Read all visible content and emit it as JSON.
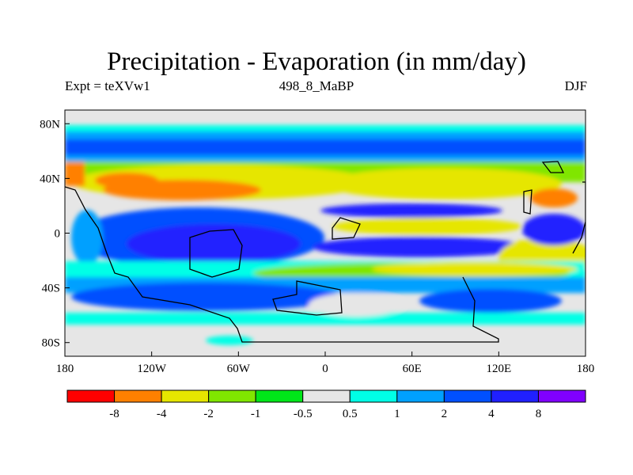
{
  "title": "Precipitation - Evaporation (in mm/day)",
  "subtitle_left": "Expt = teXVw1",
  "subtitle_center": "498_8_MaBP",
  "subtitle_right": "DJF",
  "map": {
    "projection": "cylindrical equidistant",
    "lon_range": [
      -180,
      180
    ],
    "lat_range": [
      -90,
      90
    ],
    "lon_ticks": [
      "180",
      "120W",
      "60W",
      "0",
      "60E",
      "120E",
      "180"
    ],
    "lat_ticks": [
      "80N",
      "40N",
      "0",
      "40S",
      "80S"
    ]
  },
  "colorbar": {
    "colors": [
      "#ff0000",
      "#ff8000",
      "#e6e600",
      "#80e600",
      "#00e619",
      "#e6e6e6",
      "#00ffe6",
      "#00a0ff",
      "#0050ff",
      "#2020ff",
      "#8000ff"
    ],
    "labels": [
      "-8",
      "-4",
      "-2",
      "-1",
      "-0.5",
      "0.5",
      "1",
      "2",
      "4",
      "8"
    ]
  }
}
